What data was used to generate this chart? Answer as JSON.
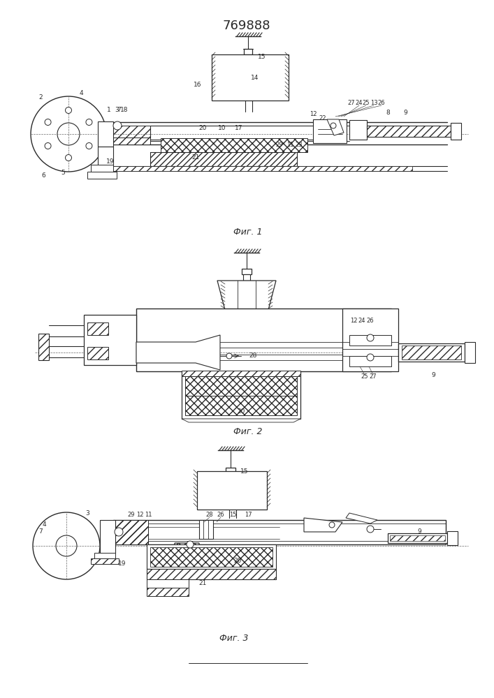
{
  "title": "769888",
  "fig_width": 7.07,
  "fig_height": 10.0,
  "dpi": 100,
  "bg_color": "#ffffff",
  "line_color": "#2a2a2a",
  "lw_main": 1.0,
  "lw_thin": 0.6,
  "lw_dash": 0.5,
  "caption1": "Фиг. 1",
  "caption2": "Фиг. 2",
  "caption3": "Фиг. 3",
  "label_fontsize": 6.5,
  "caption_fontsize": 9
}
